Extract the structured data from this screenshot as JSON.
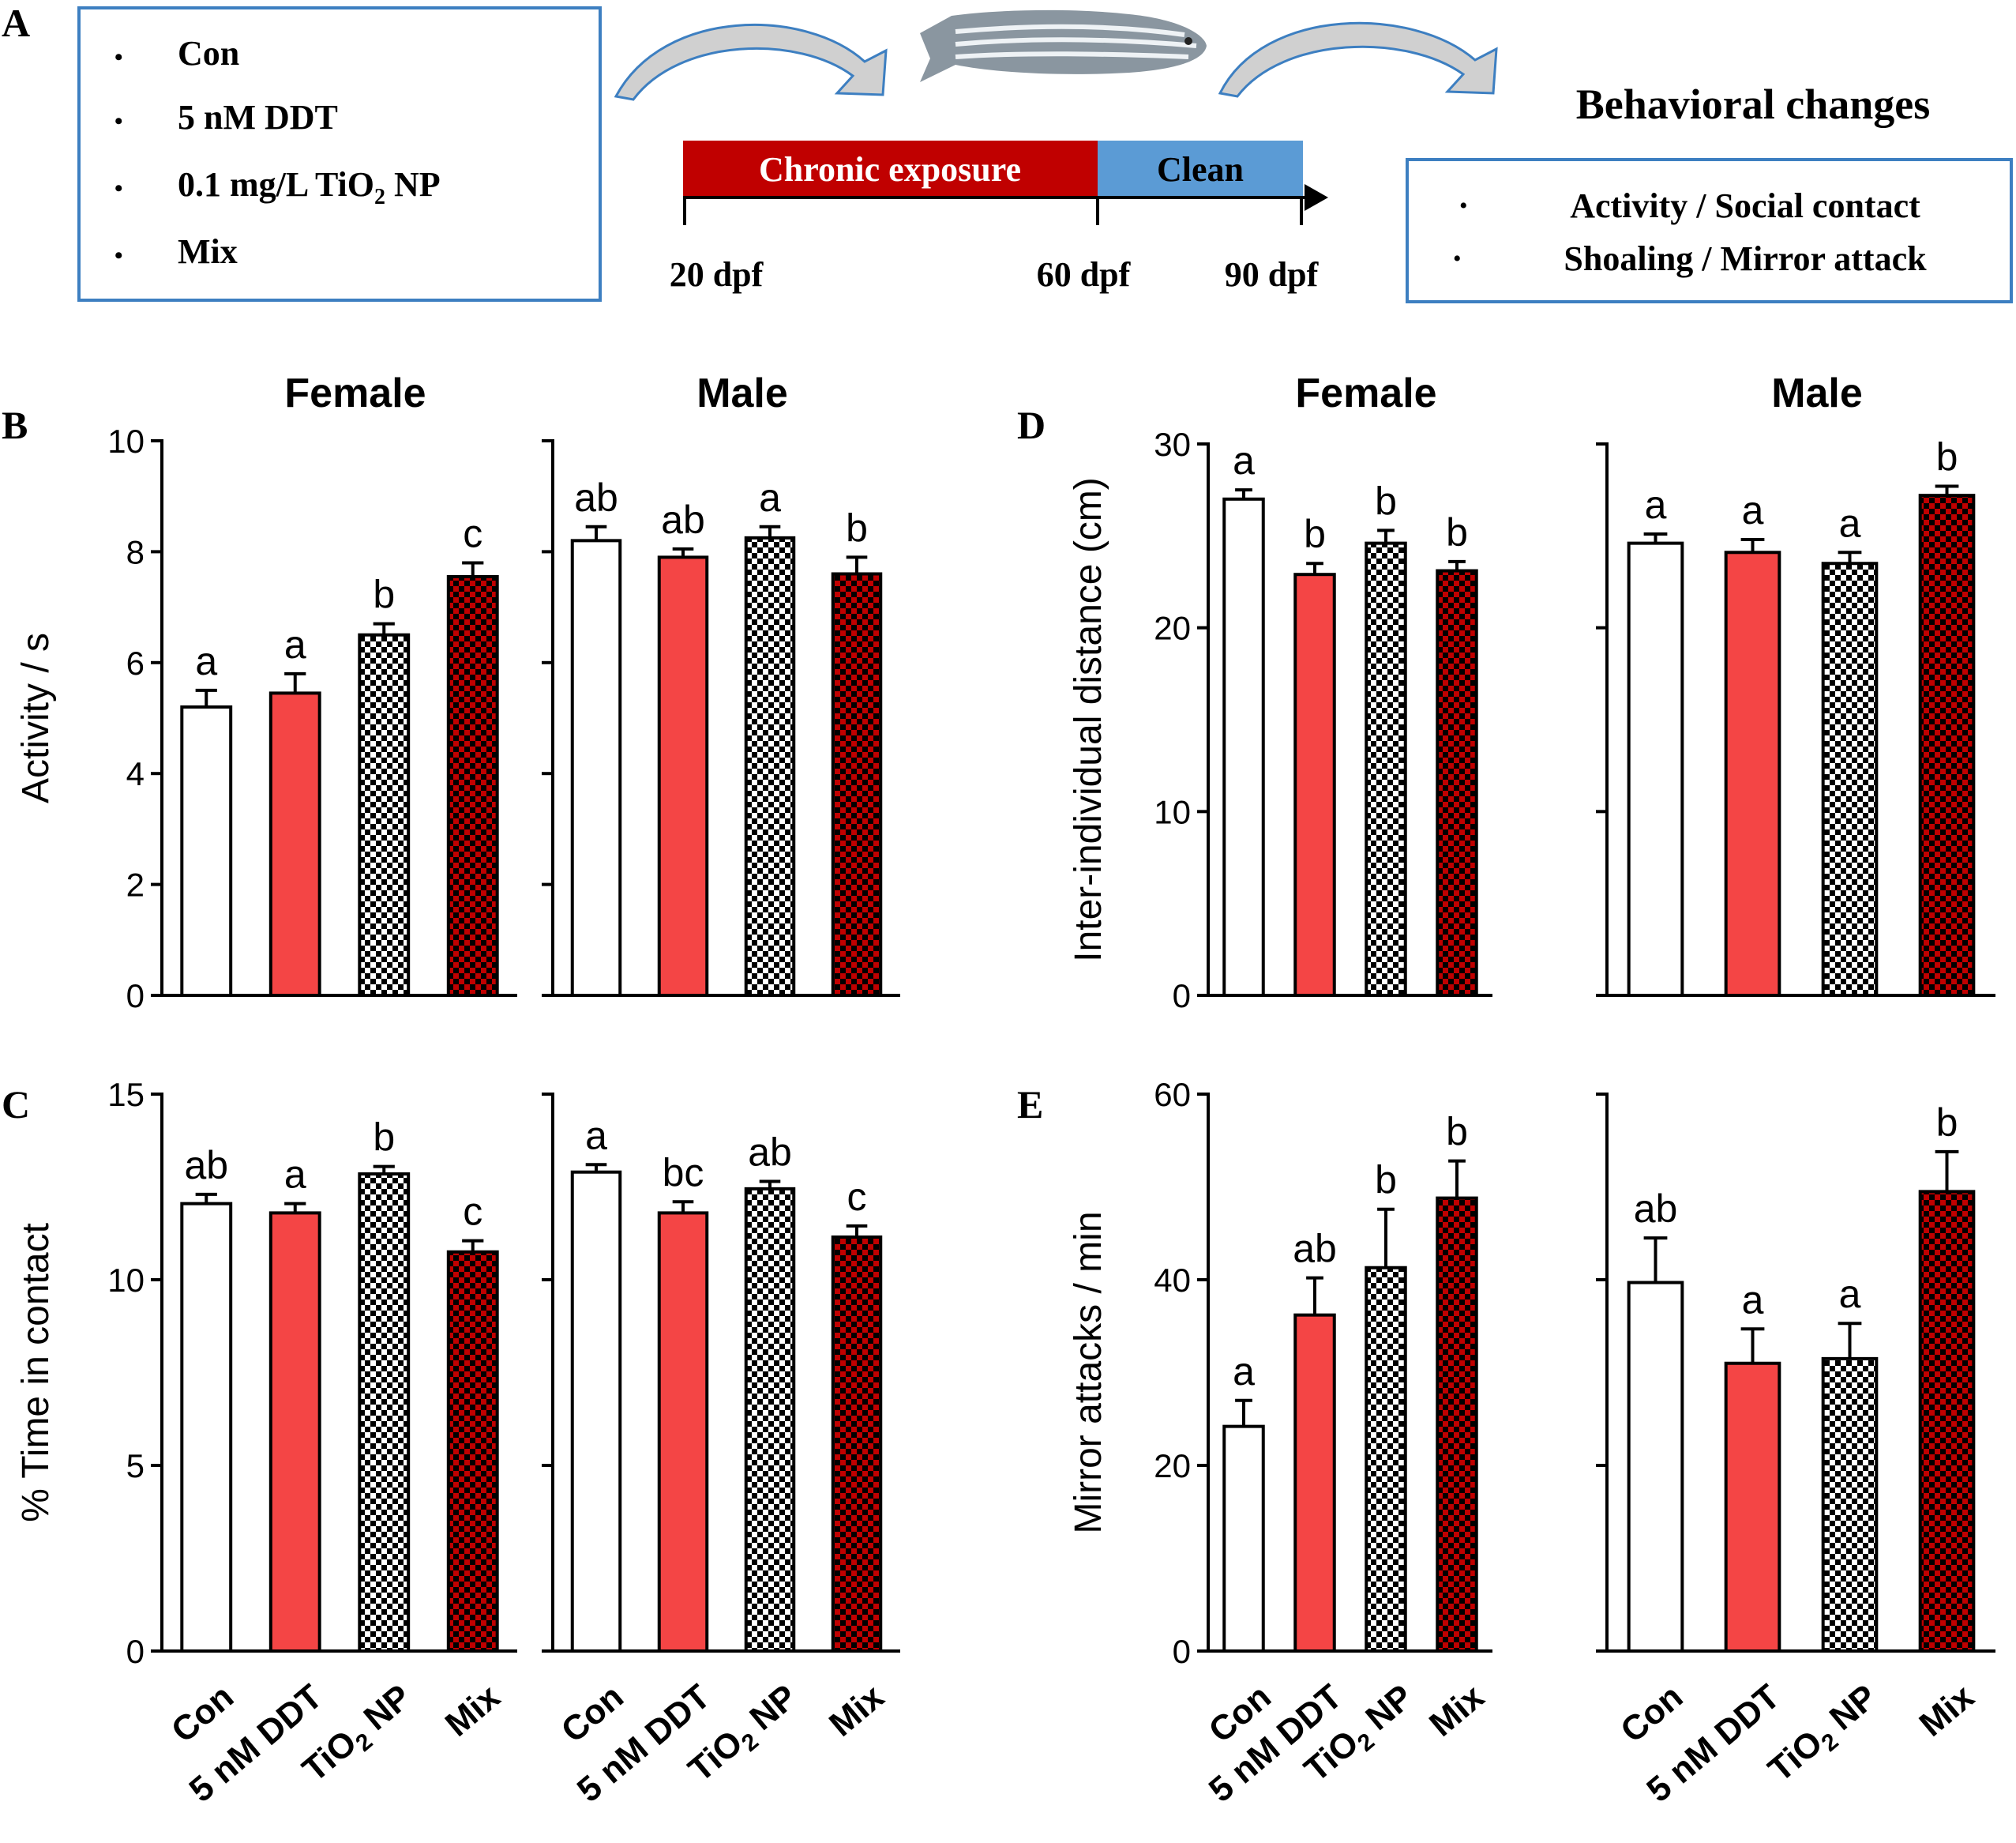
{
  "panel_letters": {
    "A": "A",
    "B": "B",
    "C": "C",
    "D": "D",
    "E": "E"
  },
  "groups_box": {
    "bullet": "•",
    "items": [
      {
        "text": "Con"
      },
      {
        "text": "5 nM DDT"
      },
      {
        "text": "0.1 mg/L TiO",
        "sub": "2",
        "tail": " NP"
      },
      {
        "text": "Mix"
      }
    ]
  },
  "timeline": {
    "segments": [
      {
        "label": "Chronic exposure",
        "color": "#c00000"
      },
      {
        "label": "Clean",
        "color": "#5b9bd5"
      }
    ],
    "ticks": [
      "20 dpf",
      "60 dpf",
      "90 dpf"
    ]
  },
  "outcome": {
    "title": "Behavioral changes",
    "items": [
      "Activity / Social contact",
      "Shoaling / Mirror attack"
    ]
  },
  "colors": {
    "frame": "#000000",
    "box_border": "#3d7fc1",
    "arrow_fill": "#d0d0d0",
    "arrow_stroke": "#3d7fc1",
    "control": "#ffffff",
    "ddt": "#f44545",
    "tio2_checker": "#000000",
    "mix_checker": "#c00000"
  },
  "x_tick_labels": [
    {
      "text": "Con"
    },
    {
      "text": "5 nM DDT"
    },
    {
      "text": "TiO",
      "sub": "2",
      "tail": " NP"
    },
    {
      "text": "Mix"
    }
  ],
  "chart_data": [
    {
      "panel": "B",
      "title": "Female",
      "type": "bar",
      "ylabel": "Activity / s",
      "ylim": [
        0,
        10
      ],
      "yticks": [
        "0",
        "2",
        "4",
        "6",
        "8",
        "10"
      ],
      "categories": [
        "Con",
        "5 nM DDT",
        "TiO2 NP",
        "Mix"
      ],
      "values": [
        5.2,
        5.45,
        6.5,
        7.55
      ],
      "errors": [
        0.3,
        0.35,
        0.2,
        0.25
      ],
      "letters": [
        "a",
        "a",
        "b",
        "c"
      ]
    },
    {
      "panel": "B",
      "title": "Male",
      "type": "bar",
      "ylim": [
        0,
        10
      ],
      "categories": [
        "Con",
        "5 nM DDT",
        "TiO2 NP",
        "Mix"
      ],
      "values": [
        8.2,
        7.9,
        8.25,
        7.6
      ],
      "errors": [
        0.25,
        0.15,
        0.2,
        0.3
      ],
      "letters": [
        "ab",
        "ab",
        "a",
        "b"
      ]
    },
    {
      "panel": "C",
      "title": "",
      "type": "bar",
      "ylabel": "% Time in contact",
      "ylim": [
        0,
        15
      ],
      "yticks": [
        "0",
        "5",
        "10",
        "15"
      ],
      "categories": [
        "Con",
        "5 nM DDT",
        "TiO2 NP",
        "Mix"
      ],
      "values": [
        12.05,
        11.8,
        12.85,
        10.75
      ],
      "errors": [
        0.25,
        0.25,
        0.2,
        0.3
      ],
      "letters": [
        "ab",
        "a",
        "b",
        "c"
      ]
    },
    {
      "panel": "C",
      "title": "",
      "type": "bar",
      "ylim": [
        0,
        15
      ],
      "categories": [
        "Con",
        "5 nM DDT",
        "TiO2 NP",
        "Mix"
      ],
      "values": [
        12.9,
        11.8,
        12.45,
        11.15
      ],
      "errors": [
        0.2,
        0.3,
        0.2,
        0.3
      ],
      "letters": [
        "a",
        "bc",
        "ab",
        "c"
      ]
    },
    {
      "panel": "D",
      "title": "Female",
      "type": "bar",
      "ylabel": "Inter-individual distance (cm)",
      "ylim": [
        0,
        30
      ],
      "yticks": [
        "0",
        "10",
        "20",
        "30"
      ],
      "categories": [
        "Con",
        "5 nM DDT",
        "TiO2 NP",
        "Mix"
      ],
      "values": [
        27.0,
        22.9,
        24.6,
        23.1
      ],
      "errors": [
        0.5,
        0.6,
        0.7,
        0.5
      ],
      "letters": [
        "a",
        "b",
        "b",
        "b"
      ]
    },
    {
      "panel": "D",
      "title": "Male",
      "type": "bar",
      "ylim": [
        0,
        30
      ],
      "categories": [
        "Con",
        "5 nM DDT",
        "TiO2 NP",
        "Mix"
      ],
      "values": [
        24.6,
        24.1,
        23.5,
        27.2
      ],
      "errors": [
        0.5,
        0.7,
        0.6,
        0.5
      ],
      "letters": [
        "a",
        "a",
        "a",
        "b"
      ]
    },
    {
      "panel": "E",
      "title": "",
      "type": "bar",
      "ylabel": "Mirror attacks / min",
      "ylim": [
        0,
        60
      ],
      "yticks": [
        "0",
        "20",
        "40",
        "60"
      ],
      "categories": [
        "Con",
        "5 nM DDT",
        "TiO2 NP",
        "Mix"
      ],
      "values": [
        24.2,
        36.2,
        41.3,
        48.8
      ],
      "errors": [
        2.8,
        4.0,
        6.3,
        4.0
      ],
      "letters": [
        "a",
        "ab",
        "b",
        "b"
      ]
    },
    {
      "panel": "E",
      "title": "",
      "type": "bar",
      "ylim": [
        0,
        60
      ],
      "categories": [
        "Con",
        "5 nM DDT",
        "TiO2 NP",
        "Mix"
      ],
      "values": [
        39.7,
        31.0,
        31.5,
        49.5
      ],
      "errors": [
        4.8,
        3.7,
        3.8,
        4.3
      ],
      "letters": [
        "ab",
        "a",
        "a",
        "b"
      ]
    }
  ]
}
